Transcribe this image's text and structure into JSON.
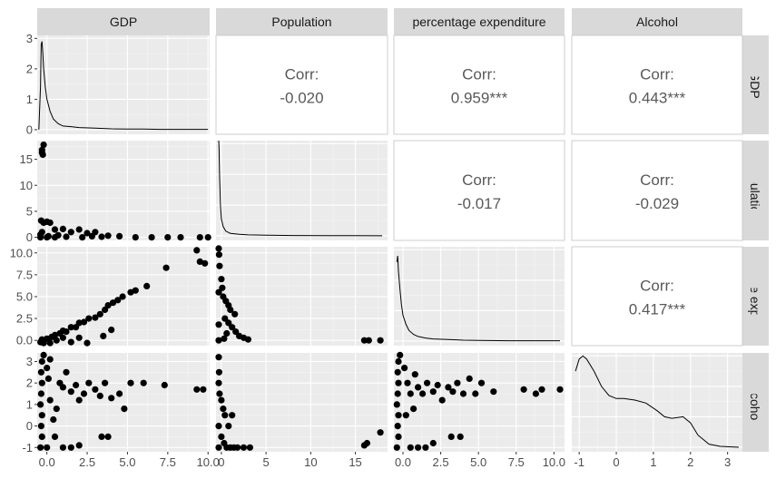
{
  "chart_data": {
    "type": "scatter-matrix",
    "variables": [
      "GDP",
      "Population",
      "percentage expenditure",
      "Alcohol"
    ],
    "axes": {
      "GDP": {
        "lim": [
          -0.6,
          10.1
        ],
        "ticks": [
          0,
          2.5,
          5,
          7.5,
          10
        ],
        "tick_labels": [
          "0.0",
          "2.5",
          "5.0",
          "7.5",
          "10.0"
        ]
      },
      "Population": {
        "lim": [
          -0.6,
          18.6
        ],
        "ticks": [
          0,
          5,
          10,
          15
        ],
        "tick_labels": [
          "0",
          "5",
          "10",
          "15"
        ]
      },
      "percentage expenditure": {
        "lim": [
          -0.6,
          10.7
        ],
        "ticks": [
          0,
          2.5,
          5,
          7.5,
          10
        ],
        "tick_labels": [
          "0.0",
          "2.5",
          "5.0",
          "7.5",
          "10.0"
        ]
      },
      "Alcohol": {
        "lim": [
          -1.2,
          3.4
        ],
        "ticks": [
          -1,
          0,
          1,
          2,
          3
        ],
        "tick_labels": [
          "-1",
          "0",
          "1",
          "2",
          "3"
        ]
      }
    },
    "diagonal_y_axis": {
      "lim": [
        -0.15,
        3.1
      ],
      "ticks": [
        0,
        1,
        2,
        3
      ],
      "tick_labels": [
        "0",
        "1",
        "2",
        "3"
      ]
    },
    "correlations": [
      {
        "row": "GDP",
        "col": "Population",
        "label": "Corr:",
        "value": "-0.020"
      },
      {
        "row": "GDP",
        "col": "percentage expenditure",
        "label": "Corr:",
        "value": "0.959***"
      },
      {
        "row": "GDP",
        "col": "Alcohol",
        "label": "Corr:",
        "value": "0.443***"
      },
      {
        "row": "Population",
        "col": "percentage expenditure",
        "label": "Corr:",
        "value": "-0.017"
      },
      {
        "row": "Population",
        "col": "Alcohol",
        "label": "Corr:",
        "value": "-0.029"
      },
      {
        "row": "percentage expenditure",
        "col": "Alcohol",
        "label": "Corr:",
        "value": "0.417***"
      }
    ],
    "densities": {
      "GDP": [
        [
          -0.5,
          0
        ],
        [
          -0.4,
          1.4
        ],
        [
          -0.35,
          2.8
        ],
        [
          -0.3,
          2.9
        ],
        [
          -0.25,
          2.5
        ],
        [
          -0.2,
          2.0
        ],
        [
          -0.1,
          1.4
        ],
        [
          0,
          1.0
        ],
        [
          0.2,
          0.6
        ],
        [
          0.4,
          0.35
        ],
        [
          0.7,
          0.2
        ],
        [
          1.0,
          0.12
        ],
        [
          1.5,
          0.1
        ],
        [
          2,
          0.07
        ],
        [
          3,
          0.05
        ],
        [
          4,
          0.03
        ],
        [
          5,
          0.02
        ],
        [
          6,
          0.02
        ],
        [
          7,
          0.01
        ],
        [
          8,
          0.01
        ],
        [
          9,
          0.01
        ],
        [
          10,
          0.01
        ]
      ],
      "Population": [
        [
          -0.3,
          3.1
        ],
        [
          -0.25,
          2.8
        ],
        [
          -0.2,
          2.0
        ],
        [
          -0.1,
          1.0
        ],
        [
          0,
          0.55
        ],
        [
          0.2,
          0.3
        ],
        [
          0.5,
          0.15
        ],
        [
          1,
          0.08
        ],
        [
          2,
          0.05
        ],
        [
          3,
          0.03
        ],
        [
          5,
          0.02
        ],
        [
          8,
          0.01
        ],
        [
          12,
          0.005
        ],
        [
          15,
          0.003
        ],
        [
          18,
          0
        ]
      ],
      "percentage expenditure": [
        [
          -0.4,
          2.6
        ],
        [
          -0.35,
          2.8
        ],
        [
          -0.3,
          2.3
        ],
        [
          -0.2,
          1.7
        ],
        [
          -0.1,
          1.2
        ],
        [
          0,
          0.85
        ],
        [
          0.2,
          0.55
        ],
        [
          0.4,
          0.35
        ],
        [
          0.7,
          0.22
        ],
        [
          1,
          0.15
        ],
        [
          1.5,
          0.1
        ],
        [
          2,
          0.07
        ],
        [
          3,
          0.05
        ],
        [
          4,
          0.03
        ],
        [
          5,
          0.02
        ],
        [
          7,
          0.01
        ],
        [
          10.4,
          0.01
        ]
      ],
      "Alcohol": [
        [
          -1.1,
          2.5
        ],
        [
          -1.0,
          2.9
        ],
        [
          -0.9,
          3.0
        ],
        [
          -0.8,
          2.9
        ],
        [
          -0.6,
          2.5
        ],
        [
          -0.4,
          2.0
        ],
        [
          -0.2,
          1.7
        ],
        [
          0,
          1.6
        ],
        [
          0.2,
          1.6
        ],
        [
          0.5,
          1.55
        ],
        [
          0.8,
          1.45
        ],
        [
          1.1,
          1.2
        ],
        [
          1.3,
          1.0
        ],
        [
          1.5,
          0.95
        ],
        [
          1.8,
          1.0
        ],
        [
          2.0,
          0.8
        ],
        [
          2.2,
          0.4
        ],
        [
          2.5,
          0.1
        ],
        [
          2.8,
          0.03
        ],
        [
          3.3,
          0.0
        ]
      ]
    },
    "scatter": {
      "Population_vs_GDP": [
        [
          -0.3,
          16.8
        ],
        [
          -0.25,
          15.9
        ],
        [
          -0.2,
          17.8
        ],
        [
          -0.3,
          16.3
        ],
        [
          -0.35,
          3.2
        ],
        [
          -0.2,
          2.8
        ],
        [
          0,
          3.0
        ],
        [
          0.2,
          2.8
        ],
        [
          0.5,
          1.5
        ],
        [
          1.0,
          1.6
        ],
        [
          1.5,
          1.0
        ],
        [
          2.0,
          1.5
        ],
        [
          2.5,
          0.8
        ],
        [
          3.0,
          1.0
        ],
        [
          3.8,
          0.3
        ],
        [
          4.5,
          0.2
        ],
        [
          5.5,
          0.0
        ],
        [
          6.5,
          0.0
        ],
        [
          7.5,
          0.0
        ],
        [
          8.3,
          0.0
        ],
        [
          9.5,
          0.0
        ],
        [
          10.0,
          0.0
        ],
        [
          -0.4,
          0.5
        ],
        [
          -0.3,
          1.0
        ],
        [
          0.1,
          0.2
        ],
        [
          0.7,
          0.4
        ],
        [
          1.2,
          0.1
        ],
        [
          2.2,
          0.0
        ],
        [
          2.8,
          0.2
        ],
        [
          3.4,
          0.1
        ],
        [
          -0.4,
          0.0
        ],
        [
          0.0,
          0.0
        ],
        [
          0.5,
          0.0
        ]
      ],
      "expenditure_vs_GDP": [
        [
          -0.4,
          -0.2
        ],
        [
          -0.3,
          0.1
        ],
        [
          0,
          0.2
        ],
        [
          0.3,
          0.4
        ],
        [
          0.5,
          0.6
        ],
        [
          0.8,
          0.8
        ],
        [
          1,
          1.1
        ],
        [
          1.2,
          1.0
        ],
        [
          1.5,
          1.5
        ],
        [
          1.8,
          1.5
        ],
        [
          2,
          2.0
        ],
        [
          2.3,
          2.1
        ],
        [
          2.6,
          2.5
        ],
        [
          3.0,
          2.6
        ],
        [
          3.3,
          3.0
        ],
        [
          3.6,
          3.5
        ],
        [
          3.8,
          4.0
        ],
        [
          4.1,
          4.3
        ],
        [
          4.4,
          4.6
        ],
        [
          4.7,
          5.0
        ],
        [
          5.2,
          5.5
        ],
        [
          5.5,
          5.7
        ],
        [
          6.2,
          6.2
        ],
        [
          7.4,
          8.3
        ],
        [
          9.3,
          10.3
        ],
        [
          9.5,
          9.0
        ],
        [
          9.8,
          8.8
        ],
        [
          1.5,
          -0.2
        ],
        [
          2,
          0.3
        ],
        [
          2.5,
          -0.3
        ],
        [
          3.5,
          0.5
        ],
        [
          4.0,
          1.2
        ],
        [
          0.2,
          -0.3
        ],
        [
          0.6,
          0.0
        ],
        [
          1.0,
          0.3
        ],
        [
          -0.2,
          -0.3
        ]
      ],
      "Alcohol_vs_GDP": [
        [
          -0.4,
          -1.0
        ],
        [
          -0.3,
          -0.5
        ],
        [
          -0.35,
          0
        ],
        [
          -0.3,
          0.5
        ],
        [
          -0.4,
          1.0
        ],
        [
          -0.35,
          1.5
        ],
        [
          -0.3,
          2.0
        ],
        [
          -0.35,
          2.5
        ],
        [
          -0.3,
          3.0
        ],
        [
          -0.2,
          3.3
        ],
        [
          0,
          2.7
        ],
        [
          0.2,
          3.1
        ],
        [
          0.1,
          2.2
        ],
        [
          0.2,
          1.2
        ],
        [
          0.4,
          0.3
        ],
        [
          0.5,
          -0.5
        ],
        [
          0.8,
          2.0
        ],
        [
          1.0,
          1.8
        ],
        [
          1.2,
          2.5
        ],
        [
          1.5,
          1.6
        ],
        [
          1.8,
          1.9
        ],
        [
          2.0,
          1.2
        ],
        [
          2.3,
          1.5
        ],
        [
          2.6,
          2.0
        ],
        [
          3.0,
          1.7
        ],
        [
          3.3,
          1.4
        ],
        [
          3.6,
          2.0
        ],
        [
          4.0,
          1.3
        ],
        [
          3.4,
          -0.5
        ],
        [
          3.8,
          -0.5
        ],
        [
          4.5,
          1.5
        ],
        [
          4.8,
          0.8
        ],
        [
          5.2,
          2.0
        ],
        [
          6.0,
          2.0
        ],
        [
          7.3,
          1.9
        ],
        [
          9.3,
          1.7
        ],
        [
          9.7,
          1.7
        ],
        [
          1.0,
          -1.0
        ],
        [
          1.5,
          -1.0
        ],
        [
          2.0,
          -0.9
        ],
        [
          0.0,
          -1.0
        ],
        [
          0.6,
          0.8
        ]
      ],
      "expenditure_vs_Population": [
        [
          -0.3,
          10.5
        ],
        [
          -0.25,
          9.8
        ],
        [
          -0.2,
          8.5
        ],
        [
          0,
          7.0
        ],
        [
          0.1,
          6.0
        ],
        [
          -0.3,
          5.5
        ],
        [
          0.2,
          5.0
        ],
        [
          0.5,
          4.5
        ],
        [
          0.8,
          4.0
        ],
        [
          1.0,
          3.5
        ],
        [
          1.5,
          3.0
        ],
        [
          0.4,
          2.5
        ],
        [
          0.8,
          2.0
        ],
        [
          1.2,
          1.5
        ],
        [
          1.6,
          1.0
        ],
        [
          2.0,
          0.5
        ],
        [
          2.5,
          0.3
        ],
        [
          3.0,
          0.1
        ],
        [
          -0.3,
          0.0
        ],
        [
          0.3,
          0.2
        ],
        [
          16.0,
          0.0
        ],
        [
          16.5,
          0.0
        ],
        [
          17.8,
          0.0
        ],
        [
          -0.3,
          1.8
        ],
        [
          0.6,
          0.8
        ]
      ],
      "Alcohol_vs_Population": [
        [
          -0.3,
          3.2
        ],
        [
          -0.25,
          2.5
        ],
        [
          -0.3,
          2.0
        ],
        [
          -0.2,
          1.5
        ],
        [
          0,
          1.2
        ],
        [
          0.2,
          0.8
        ],
        [
          0.4,
          0.5
        ],
        [
          -0.3,
          0
        ],
        [
          0,
          -0.5
        ],
        [
          0.3,
          -0.8
        ],
        [
          0.6,
          -1.0
        ],
        [
          1.0,
          -1.0
        ],
        [
          1.4,
          -1.0
        ],
        [
          1.8,
          -1.0
        ],
        [
          2.5,
          -1.0
        ],
        [
          3.2,
          -1.0
        ],
        [
          0.8,
          0.0
        ],
        [
          1.2,
          0.5
        ],
        [
          -0.3,
          -1.0
        ],
        [
          16.0,
          -0.9
        ],
        [
          16.3,
          -0.8
        ],
        [
          17.8,
          -0.3
        ]
      ],
      "Alcohol_vs_expenditure": [
        [
          -0.4,
          -1.0
        ],
        [
          -0.3,
          -0.5
        ],
        [
          -0.35,
          0
        ],
        [
          -0.3,
          0.5
        ],
        [
          -0.4,
          1.0
        ],
        [
          -0.35,
          1.5
        ],
        [
          -0.3,
          2.0
        ],
        [
          -0.35,
          2.5
        ],
        [
          -0.3,
          3.0
        ],
        [
          -0.2,
          3.3
        ],
        [
          0.1,
          2.7
        ],
        [
          0.3,
          2.0
        ],
        [
          0.5,
          1.5
        ],
        [
          0.8,
          2.4
        ],
        [
          1.0,
          1.8
        ],
        [
          1.3,
          1.5
        ],
        [
          1.6,
          2.0
        ],
        [
          2.0,
          1.6
        ],
        [
          2.3,
          1.9
        ],
        [
          2.6,
          1.2
        ],
        [
          3.0,
          1.8
        ],
        [
          3.3,
          1.6
        ],
        [
          3.6,
          2.0
        ],
        [
          4.0,
          1.5
        ],
        [
          4.4,
          2.2
        ],
        [
          4.8,
          1.5
        ],
        [
          3.2,
          -0.5
        ],
        [
          3.8,
          -0.5
        ],
        [
          5.2,
          2.0
        ],
        [
          6.0,
          1.6
        ],
        [
          8.0,
          1.7
        ],
        [
          8.8,
          1.5
        ],
        [
          9.2,
          1.7
        ],
        [
          10.4,
          1.7
        ],
        [
          0.5,
          -1.0
        ],
        [
          1.0,
          -1.0
        ],
        [
          1.5,
          -1.0
        ],
        [
          2.0,
          -0.8
        ],
        [
          0.2,
          0.5
        ],
        [
          0.7,
          0.8
        ]
      ]
    }
  }
}
